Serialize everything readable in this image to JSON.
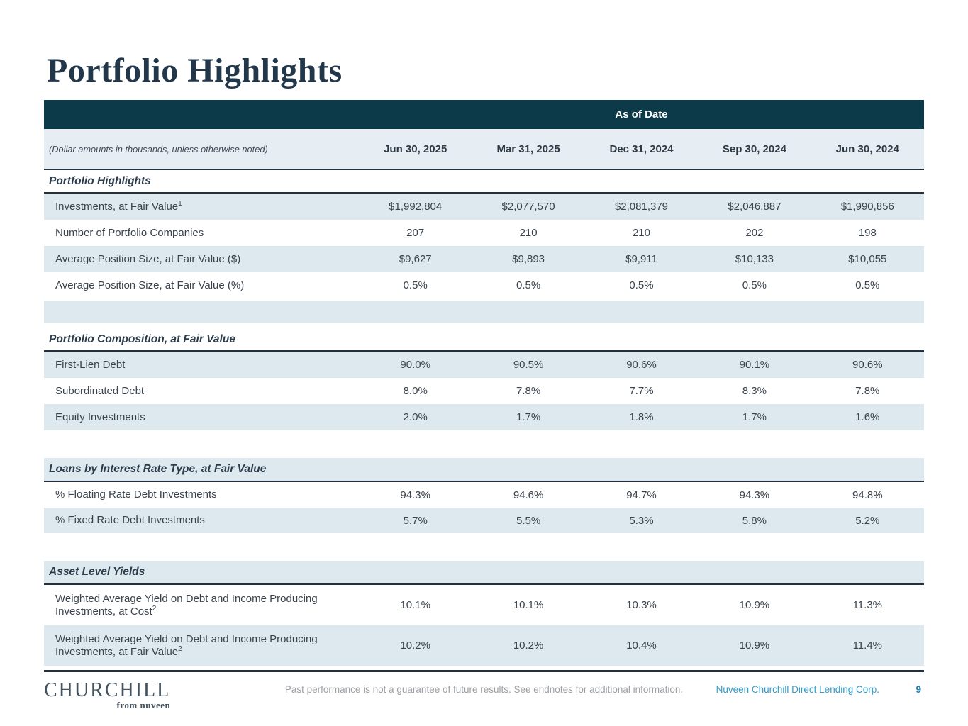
{
  "title": "Portfolio Highlights",
  "colors": {
    "header_bar": "#0d3a49",
    "row_shade": "#dde9ef",
    "rule_dark": "#22303d",
    "brand_teal": "#2f9cc9",
    "page_number_blue": "#1b7fb5"
  },
  "table": {
    "banner": "As of Date",
    "note": "(Dollar amounts in thousands, unless otherwise noted)",
    "columns": [
      "Jun 30, 2025",
      "Mar 31, 2025",
      "Dec 31, 2024",
      "Sep 30, 2024",
      "Jun 30, 2024"
    ],
    "sections": [
      {
        "title": "Portfolio Highlights",
        "rows": [
          {
            "label": "Investments, at Fair Value",
            "sup": "1",
            "values": [
              "$1,992,804",
              "$2,077,570",
              "$2,081,379",
              "$2,046,887",
              "$1,990,856"
            ]
          },
          {
            "label": "Number of Portfolio Companies",
            "values": [
              "207",
              "210",
              "210",
              "202",
              "198"
            ]
          },
          {
            "label": "Average Position Size, at Fair Value ($)",
            "values": [
              "$9,627",
              "$9,893",
              "$9,911",
              "$10,133",
              "$10,055"
            ]
          },
          {
            "label": "Average Position Size, at Fair Value (%)",
            "values": [
              "0.5%",
              "0.5%",
              "0.5%",
              "0.5%",
              "0.5%"
            ]
          }
        ]
      },
      {
        "title": "Portfolio Composition, at Fair Value",
        "rows": [
          {
            "label": "First-Lien Debt",
            "values": [
              "90.0%",
              "90.5%",
              "90.6%",
              "90.1%",
              "90.6%"
            ]
          },
          {
            "label": "Subordinated Debt",
            "values": [
              "8.0%",
              "7.8%",
              "7.7%",
              "8.3%",
              "7.8%"
            ]
          },
          {
            "label": "Equity Investments",
            "values": [
              "2.0%",
              "1.7%",
              "1.8%",
              "1.7%",
              "1.6%"
            ]
          }
        ]
      },
      {
        "title": "Loans by Interest Rate Type, at Fair Value",
        "rows": [
          {
            "label": "% Floating Rate Debt Investments",
            "values": [
              "94.3%",
              "94.6%",
              "94.7%",
              "94.3%",
              "94.8%"
            ]
          },
          {
            "label": "% Fixed Rate Debt Investments",
            "values": [
              "5.7%",
              "5.5%",
              "5.3%",
              "5.8%",
              "5.2%"
            ]
          }
        ]
      },
      {
        "title": "Asset Level Yields",
        "rows": [
          {
            "label": "Weighted Average Yield on Debt and Income Producing Investments, at Cost",
            "sup": "2",
            "values": [
              "10.1%",
              "10.1%",
              "10.3%",
              "10.9%",
              "11.3%"
            ]
          },
          {
            "label": "Weighted Average Yield on Debt and Income Producing Investments, at Fair Value",
            "sup": "2",
            "values": [
              "10.2%",
              "10.2%",
              "10.4%",
              "10.9%",
              "11.4%"
            ]
          }
        ]
      }
    ]
  },
  "footer": {
    "logo_main": "CHURCHILL",
    "logo_sub": "from nuveen",
    "disclaimer": "Past performance is not a guarantee of future results. See endnotes for additional information.",
    "company": "Nuveen Churchill Direct Lending Corp.",
    "page_number": "9"
  }
}
